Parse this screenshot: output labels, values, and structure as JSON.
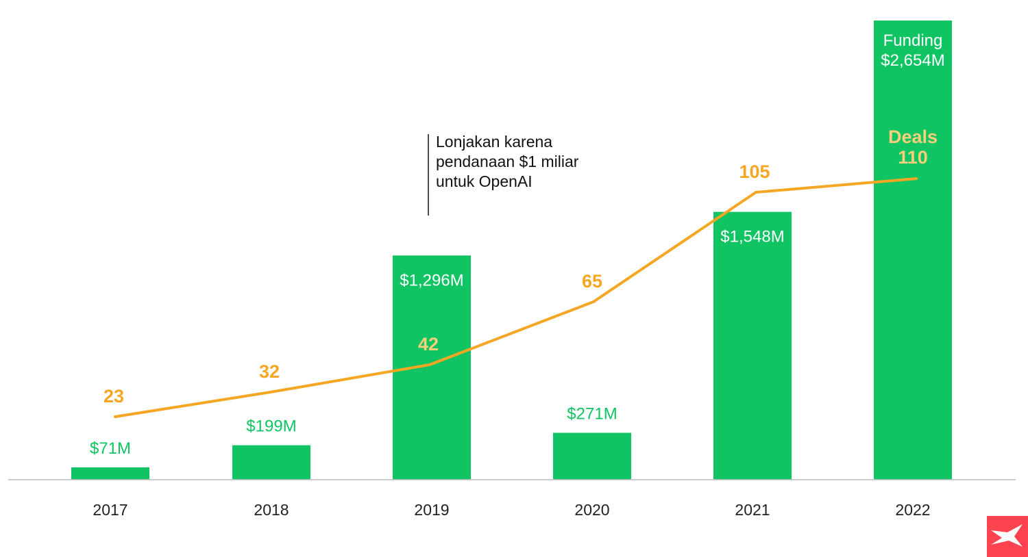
{
  "chart_data": {
    "type": "bar+line",
    "categories": [
      "2017",
      "2018",
      "2019",
      "2020",
      "2021",
      "2022"
    ],
    "series": [
      {
        "name": "Funding",
        "type": "bar",
        "unit": "$M",
        "values": [
          71,
          199,
          1296,
          271,
          1548,
          2654
        ],
        "labels": [
          "$71M",
          "$199M",
          "$1,296M",
          "$271M",
          "$1,548M",
          "$2,654M"
        ],
        "color": "#10c463"
      },
      {
        "name": "Deals",
        "type": "line",
        "values": [
          23,
          32,
          42,
          65,
          105,
          110
        ],
        "color": "#f5a623"
      }
    ],
    "annotation": {
      "category": "2019",
      "lines": [
        "Lonjakan karena",
        "pendanaan $1 miliar",
        "untuk OpenAI"
      ]
    },
    "grid": false,
    "yaxis_visible": false
  },
  "logo": {
    "color": "#fe4350",
    "icon": "x-logo-icon"
  }
}
